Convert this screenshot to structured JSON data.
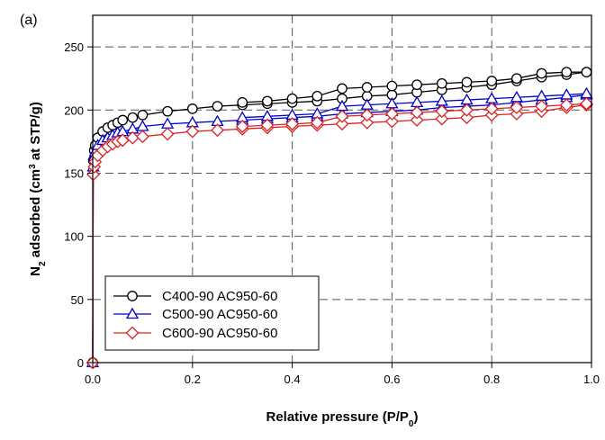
{
  "panel_label": "(a)",
  "chart_data": {
    "type": "line",
    "xlabel": {
      "main": "Relative pressure (P/P",
      "sub": "0",
      "end": ")"
    },
    "ylabel": {
      "pre": "N",
      "sub": "2",
      "mid": " adsorbed (cm",
      "sup": "3",
      "post": " at STP/g)"
    },
    "xlim": [
      0,
      1.0
    ],
    "ylim": [
      0,
      275
    ],
    "xticks": [
      "0.0",
      "0.2",
      "0.4",
      "0.6",
      "0.8",
      "1.0"
    ],
    "yticks": [
      "0",
      "50",
      "100",
      "150",
      "200",
      "250"
    ],
    "grid": true,
    "legend_position": "bottom-left",
    "series": [
      {
        "name": "C400-90 AC950-60",
        "color": "#000000",
        "marker": "circle",
        "adsorption": [
          [
            0.0,
            0
          ],
          [
            0.001,
            160
          ],
          [
            0.003,
            168
          ],
          [
            0.005,
            172
          ],
          [
            0.01,
            178
          ],
          [
            0.02,
            183
          ],
          [
            0.03,
            186
          ],
          [
            0.04,
            188
          ],
          [
            0.05,
            190
          ],
          [
            0.06,
            192
          ],
          [
            0.08,
            194
          ],
          [
            0.1,
            196
          ],
          [
            0.15,
            199
          ],
          [
            0.2,
            201
          ],
          [
            0.25,
            203
          ],
          [
            0.3,
            204
          ],
          [
            0.35,
            205
          ],
          [
            0.4,
            206
          ],
          [
            0.45,
            207
          ],
          [
            0.5,
            209
          ],
          [
            0.55,
            211
          ],
          [
            0.6,
            212
          ],
          [
            0.65,
            214
          ],
          [
            0.7,
            216
          ],
          [
            0.75,
            218
          ],
          [
            0.8,
            220
          ],
          [
            0.85,
            223
          ],
          [
            0.9,
            226
          ],
          [
            0.95,
            228
          ],
          [
            0.99,
            230
          ]
        ],
        "desorption": [
          [
            0.99,
            230
          ],
          [
            0.95,
            230
          ],
          [
            0.9,
            229
          ],
          [
            0.85,
            225
          ],
          [
            0.8,
            223
          ],
          [
            0.75,
            222
          ],
          [
            0.7,
            221
          ],
          [
            0.65,
            220
          ],
          [
            0.6,
            219
          ],
          [
            0.55,
            218
          ],
          [
            0.5,
            217
          ],
          [
            0.45,
            211
          ],
          [
            0.4,
            209
          ],
          [
            0.35,
            207
          ],
          [
            0.3,
            206
          ]
        ]
      },
      {
        "name": "C500-90 AC950-60",
        "color": "#0000cc",
        "marker": "triangle",
        "adsorption": [
          [
            0.0,
            0
          ],
          [
            0.001,
            155
          ],
          [
            0.003,
            163
          ],
          [
            0.005,
            167
          ],
          [
            0.01,
            172
          ],
          [
            0.02,
            176
          ],
          [
            0.03,
            178
          ],
          [
            0.04,
            180
          ],
          [
            0.05,
            182
          ],
          [
            0.06,
            183
          ],
          [
            0.08,
            185
          ],
          [
            0.1,
            187
          ],
          [
            0.15,
            189
          ],
          [
            0.2,
            190
          ],
          [
            0.25,
            191
          ],
          [
            0.3,
            192
          ],
          [
            0.35,
            193
          ],
          [
            0.4,
            194
          ],
          [
            0.45,
            195
          ],
          [
            0.5,
            197
          ],
          [
            0.55,
            198
          ],
          [
            0.6,
            199
          ],
          [
            0.65,
            200
          ],
          [
            0.7,
            202
          ],
          [
            0.75,
            203
          ],
          [
            0.8,
            204
          ],
          [
            0.85,
            206
          ],
          [
            0.9,
            208
          ],
          [
            0.95,
            210
          ],
          [
            0.99,
            212
          ]
        ],
        "desorption": [
          [
            0.99,
            213
          ],
          [
            0.95,
            212
          ],
          [
            0.9,
            211
          ],
          [
            0.85,
            210
          ],
          [
            0.8,
            209
          ],
          [
            0.75,
            208
          ],
          [
            0.7,
            207
          ],
          [
            0.65,
            206
          ],
          [
            0.6,
            205
          ],
          [
            0.55,
            204
          ],
          [
            0.5,
            203
          ],
          [
            0.45,
            197
          ],
          [
            0.4,
            196
          ],
          [
            0.35,
            195
          ],
          [
            0.3,
            194
          ]
        ]
      },
      {
        "name": "C600-90 AC950-60",
        "color": "#dd2222",
        "marker": "diamond",
        "adsorption": [
          [
            0.0,
            0
          ],
          [
            0.001,
            149
          ],
          [
            0.003,
            155
          ],
          [
            0.005,
            159
          ],
          [
            0.01,
            164
          ],
          [
            0.02,
            168
          ],
          [
            0.03,
            171
          ],
          [
            0.04,
            173
          ],
          [
            0.05,
            175
          ],
          [
            0.06,
            176
          ],
          [
            0.08,
            178
          ],
          [
            0.1,
            179
          ],
          [
            0.15,
            181
          ],
          [
            0.2,
            183
          ],
          [
            0.25,
            184
          ],
          [
            0.3,
            185
          ],
          [
            0.35,
            186
          ],
          [
            0.4,
            187
          ],
          [
            0.45,
            188
          ],
          [
            0.5,
            189
          ],
          [
            0.55,
            190
          ],
          [
            0.6,
            191
          ],
          [
            0.65,
            192
          ],
          [
            0.7,
            193
          ],
          [
            0.75,
            194
          ],
          [
            0.8,
            196
          ],
          [
            0.85,
            197
          ],
          [
            0.9,
            199
          ],
          [
            0.95,
            202
          ],
          [
            0.99,
            204
          ]
        ],
        "desorption": [
          [
            0.99,
            205
          ],
          [
            0.95,
            204
          ],
          [
            0.9,
            203
          ],
          [
            0.85,
            202
          ],
          [
            0.8,
            201
          ],
          [
            0.75,
            200
          ],
          [
            0.7,
            199
          ],
          [
            0.65,
            198
          ],
          [
            0.6,
            197
          ],
          [
            0.55,
            196
          ],
          [
            0.5,
            195
          ],
          [
            0.45,
            190
          ],
          [
            0.4,
            189
          ],
          [
            0.35,
            188
          ],
          [
            0.3,
            187
          ]
        ]
      }
    ]
  }
}
